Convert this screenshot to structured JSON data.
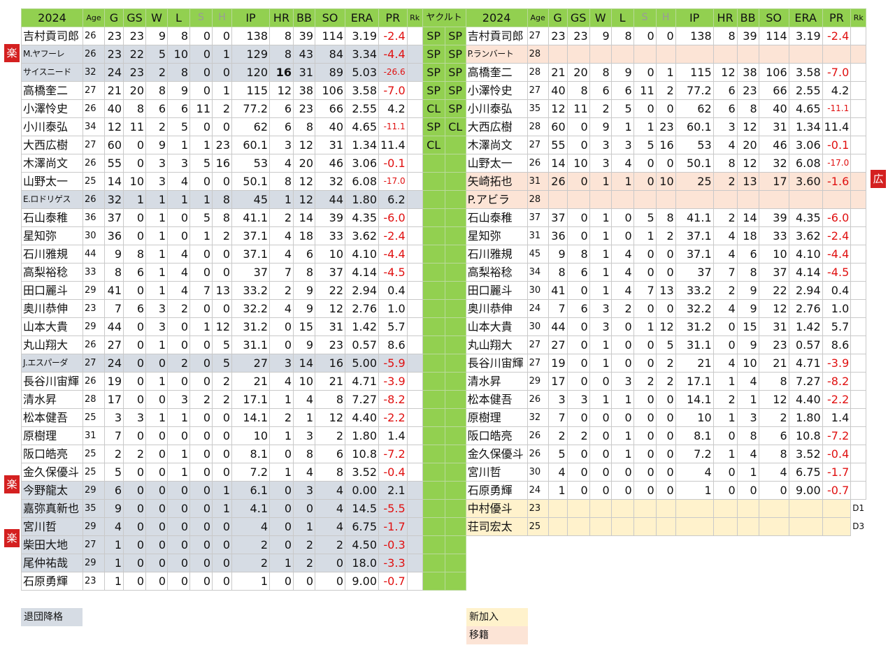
{
  "headers": {
    "left": [
      "2024",
      "Age",
      "G",
      "GS",
      "W",
      "L",
      "S",
      "H",
      "IP",
      "HR",
      "BB",
      "SO",
      "ERA",
      "PR",
      "Rk"
    ],
    "right": [
      "2024",
      "Age",
      "G",
      "GS",
      "W",
      "L",
      "S",
      "H",
      "IP",
      "HR",
      "BB",
      "SO",
      "ERA",
      "PR",
      "Rk"
    ],
    "team": "ヤクルト"
  },
  "left_rows": [
    {
      "name": "吉村貢司郎",
      "age": "26",
      "g": "23",
      "gs": "23",
      "w": "9",
      "l": "8",
      "s": "0",
      "h": "0",
      "ip": "138",
      "hr": "8",
      "bb": "39",
      "so": "114",
      "era": "3.19",
      "pr": "-2.4",
      "rk": "",
      "role1": "SP",
      "role2": "SP"
    },
    {
      "name": "M.ヤフーレ",
      "age": "26",
      "g": "23",
      "gs": "22",
      "w": "5",
      "l": "10",
      "s": "0",
      "h": "1",
      "ip": "129",
      "hr": "8",
      "bb": "43",
      "so": "84",
      "era": "3.34",
      "pr": "-4.4",
      "rk": "",
      "role1": "SP",
      "role2": "SP",
      "badge": "楽"
    },
    {
      "name": "サイスニード",
      "age": "32",
      "g": "24",
      "gs": "23",
      "w": "2",
      "l": "8",
      "s": "0",
      "h": "0",
      "ip": "120",
      "hr": "16",
      "bb": "31",
      "so": "89",
      "era": "5.03",
      "pr": "-26.6",
      "rk": "",
      "role1": "SP",
      "role2": "SP"
    },
    {
      "name": "高橋奎二",
      "age": "27",
      "g": "21",
      "gs": "20",
      "w": "8",
      "l": "9",
      "s": "0",
      "h": "1",
      "ip": "115",
      "hr": "12",
      "bb": "38",
      "so": "106",
      "era": "3.58",
      "pr": "-7.0",
      "rk": "",
      "role1": "SP",
      "role2": "SP"
    },
    {
      "name": "小澤怜史",
      "age": "26",
      "g": "40",
      "gs": "8",
      "w": "6",
      "l": "6",
      "s": "11",
      "h": "2",
      "ip": "77.2",
      "hr": "6",
      "bb": "23",
      "so": "66",
      "era": "2.55",
      "pr": "4.2",
      "rk": "",
      "role1": "CL",
      "role2": "SP"
    },
    {
      "name": "小川泰弘",
      "age": "34",
      "g": "12",
      "gs": "11",
      "w": "2",
      "l": "5",
      "s": "0",
      "h": "0",
      "ip": "62",
      "hr": "6",
      "bb": "8",
      "so": "40",
      "era": "4.65",
      "pr": "-11.1",
      "rk": "",
      "role1": "SP",
      "role2": "CL"
    },
    {
      "name": "大西広樹",
      "age": "27",
      "g": "60",
      "gs": "0",
      "w": "9",
      "l": "1",
      "s": "1",
      "h": "23",
      "ip": "60.1",
      "hr": "3",
      "bb": "12",
      "so": "31",
      "era": "1.34",
      "pr": "11.4",
      "rk": "",
      "role1": "CL",
      "role2": ""
    },
    {
      "name": "木澤尚文",
      "age": "26",
      "g": "55",
      "gs": "0",
      "w": "3",
      "l": "3",
      "s": "5",
      "h": "16",
      "ip": "53",
      "hr": "4",
      "bb": "20",
      "so": "46",
      "era": "3.06",
      "pr": "-0.1",
      "rk": "",
      "role1": "",
      "role2": ""
    },
    {
      "name": "山野太一",
      "age": "25",
      "g": "14",
      "gs": "10",
      "w": "3",
      "l": "4",
      "s": "0",
      "h": "0",
      "ip": "50.1",
      "hr": "8",
      "bb": "12",
      "so": "32",
      "era": "6.08",
      "pr": "-17.0",
      "rk": "",
      "role1": "",
      "role2": ""
    },
    {
      "name": "E.ロドリゲス",
      "age": "26",
      "g": "32",
      "gs": "1",
      "w": "1",
      "l": "1",
      "s": "1",
      "h": "8",
      "ip": "45",
      "hr": "1",
      "bb": "12",
      "so": "44",
      "era": "1.80",
      "pr": "6.2",
      "rk": "",
      "role1": "",
      "role2": ""
    },
    {
      "name": "石山泰稚",
      "age": "36",
      "g": "37",
      "gs": "0",
      "w": "1",
      "l": "0",
      "s": "5",
      "h": "8",
      "ip": "41.1",
      "hr": "2",
      "bb": "14",
      "so": "39",
      "era": "4.35",
      "pr": "-6.0",
      "rk": "",
      "role1": "",
      "role2": ""
    },
    {
      "name": "星知弥",
      "age": "30",
      "g": "36",
      "gs": "0",
      "w": "1",
      "l": "0",
      "s": "1",
      "h": "2",
      "ip": "37.1",
      "hr": "4",
      "bb": "18",
      "so": "33",
      "era": "3.62",
      "pr": "-2.4",
      "rk": "",
      "role1": "",
      "role2": ""
    },
    {
      "name": "石川雅規",
      "age": "44",
      "g": "9",
      "gs": "8",
      "w": "1",
      "l": "4",
      "s": "0",
      "h": "0",
      "ip": "37.1",
      "hr": "4",
      "bb": "6",
      "so": "10",
      "era": "4.10",
      "pr": "-4.4",
      "rk": "",
      "role1": "",
      "role2": ""
    },
    {
      "name": "高梨裕稔",
      "age": "33",
      "g": "8",
      "gs": "6",
      "w": "1",
      "l": "4",
      "s": "0",
      "h": "0",
      "ip": "37",
      "hr": "7",
      "bb": "8",
      "so": "37",
      "era": "4.14",
      "pr": "-4.5",
      "rk": "",
      "role1": "",
      "role2": ""
    },
    {
      "name": "田口麗斗",
      "age": "29",
      "g": "41",
      "gs": "0",
      "w": "1",
      "l": "4",
      "s": "7",
      "h": "13",
      "ip": "33.2",
      "hr": "2",
      "bb": "9",
      "so": "22",
      "era": "2.94",
      "pr": "0.4",
      "rk": "",
      "role1": "",
      "role2": ""
    },
    {
      "name": "奥川恭伸",
      "age": "23",
      "g": "7",
      "gs": "6",
      "w": "3",
      "l": "2",
      "s": "0",
      "h": "0",
      "ip": "32.2",
      "hr": "4",
      "bb": "9",
      "so": "12",
      "era": "2.76",
      "pr": "1.0",
      "rk": "",
      "role1": "",
      "role2": ""
    },
    {
      "name": "山本大貴",
      "age": "29",
      "g": "44",
      "gs": "0",
      "w": "3",
      "l": "0",
      "s": "1",
      "h": "12",
      "ip": "31.2",
      "hr": "0",
      "bb": "15",
      "so": "31",
      "era": "1.42",
      "pr": "5.7",
      "rk": "",
      "role1": "",
      "role2": ""
    },
    {
      "name": "丸山翔大",
      "age": "26",
      "g": "27",
      "gs": "0",
      "w": "1",
      "l": "0",
      "s": "0",
      "h": "5",
      "ip": "31.1",
      "hr": "0",
      "bb": "9",
      "so": "23",
      "era": "0.57",
      "pr": "8.6",
      "rk": "",
      "role1": "",
      "role2": ""
    },
    {
      "name": "J.エスパーダ",
      "age": "27",
      "g": "24",
      "gs": "0",
      "w": "0",
      "l": "2",
      "s": "0",
      "h": "5",
      "ip": "27",
      "hr": "3",
      "bb": "14",
      "so": "16",
      "era": "5.00",
      "pr": "-5.9",
      "rk": "",
      "role1": "",
      "role2": ""
    },
    {
      "name": "長谷川宙輝",
      "age": "26",
      "g": "19",
      "gs": "0",
      "w": "1",
      "l": "0",
      "s": "0",
      "h": "2",
      "ip": "21",
      "hr": "4",
      "bb": "10",
      "so": "21",
      "era": "4.71",
      "pr": "-3.9",
      "rk": "",
      "role1": "",
      "role2": ""
    },
    {
      "name": "清水昇",
      "age": "28",
      "g": "17",
      "gs": "0",
      "w": "0",
      "l": "3",
      "s": "2",
      "h": "2",
      "ip": "17.1",
      "hr": "1",
      "bb": "4",
      "so": "8",
      "era": "7.27",
      "pr": "-8.2",
      "rk": "",
      "role1": "",
      "role2": ""
    },
    {
      "name": "松本健吾",
      "age": "25",
      "g": "3",
      "gs": "3",
      "w": "1",
      "l": "1",
      "s": "0",
      "h": "0",
      "ip": "14.1",
      "hr": "2",
      "bb": "1",
      "so": "12",
      "era": "4.40",
      "pr": "-2.2",
      "rk": "",
      "role1": "",
      "role2": ""
    },
    {
      "name": "原樹理",
      "age": "31",
      "g": "7",
      "gs": "0",
      "w": "0",
      "l": "0",
      "s": "0",
      "h": "0",
      "ip": "10",
      "hr": "1",
      "bb": "3",
      "so": "2",
      "era": "1.80",
      "pr": "1.4",
      "rk": "",
      "role1": "",
      "role2": ""
    },
    {
      "name": "阪口皓亮",
      "age": "25",
      "g": "2",
      "gs": "2",
      "w": "0",
      "l": "1",
      "s": "0",
      "h": "0",
      "ip": "8.1",
      "hr": "0",
      "bb": "8",
      "so": "6",
      "era": "10.8",
      "pr": "-7.2",
      "rk": "",
      "role1": "",
      "role2": ""
    },
    {
      "name": "金久保優斗",
      "age": "25",
      "g": "5",
      "gs": "0",
      "w": "0",
      "l": "1",
      "s": "0",
      "h": "0",
      "ip": "7.2",
      "hr": "1",
      "bb": "4",
      "so": "8",
      "era": "3.52",
      "pr": "-0.4",
      "rk": "",
      "role1": "",
      "role2": ""
    },
    {
      "name": "今野龍太",
      "age": "29",
      "g": "6",
      "gs": "0",
      "w": "0",
      "l": "0",
      "s": "0",
      "h": "1",
      "ip": "6.1",
      "hr": "0",
      "bb": "3",
      "so": "4",
      "era": "0.00",
      "pr": "2.1",
      "rk": "",
      "role1": "",
      "role2": "",
      "badge": "楽"
    },
    {
      "name": "嘉弥真新也",
      "age": "35",
      "g": "9",
      "gs": "0",
      "w": "0",
      "l": "0",
      "s": "0",
      "h": "1",
      "ip": "4.1",
      "hr": "0",
      "bb": "0",
      "so": "4",
      "era": "14.5",
      "pr": "-5.5",
      "rk": "",
      "role1": "",
      "role2": ""
    },
    {
      "name": "宮川哲",
      "age": "29",
      "g": "4",
      "gs": "0",
      "w": "0",
      "l": "0",
      "s": "0",
      "h": "0",
      "ip": "4",
      "hr": "0",
      "bb": "1",
      "so": "4",
      "era": "6.75",
      "pr": "-1.7",
      "rk": "",
      "role1": "",
      "role2": ""
    },
    {
      "name": "柴田大地",
      "age": "27",
      "g": "1",
      "gs": "0",
      "w": "0",
      "l": "0",
      "s": "0",
      "h": "0",
      "ip": "2",
      "hr": "0",
      "bb": "2",
      "so": "2",
      "era": "4.50",
      "pr": "-0.3",
      "rk": "",
      "role1": "",
      "role2": "",
      "badge": "楽"
    },
    {
      "name": "尾仲祐哉",
      "age": "29",
      "g": "1",
      "gs": "0",
      "w": "0",
      "l": "0",
      "s": "0",
      "h": "0",
      "ip": "2",
      "hr": "1",
      "bb": "2",
      "so": "0",
      "era": "18.0",
      "pr": "-3.3",
      "rk": "",
      "role1": "",
      "role2": ""
    },
    {
      "name": "石原勇輝",
      "age": "23",
      "g": "1",
      "gs": "0",
      "w": "0",
      "l": "0",
      "s": "0",
      "h": "0",
      "ip": "1",
      "hr": "0",
      "bb": "0",
      "so": "0",
      "era": "9.00",
      "pr": "-0.7",
      "rk": "",
      "role1": "",
      "role2": ""
    }
  ],
  "right_rows": [
    {
      "name": "吉村貢司郎",
      "age": "27",
      "g": "23",
      "gs": "23",
      "w": "9",
      "l": "8",
      "s": "0",
      "h": "0",
      "ip": "138",
      "hr": "8",
      "bb": "39",
      "so": "114",
      "era": "3.19",
      "pr": "-2.4",
      "rk": ""
    },
    {
      "name": "P.ランバート",
      "age": "28",
      "g": "",
      "gs": "",
      "w": "",
      "l": "",
      "s": "",
      "h": "",
      "ip": "",
      "hr": "",
      "bb": "",
      "so": "",
      "era": "",
      "pr": "",
      "rk": ""
    },
    {
      "name": "高橋奎二",
      "age": "28",
      "g": "21",
      "gs": "20",
      "w": "8",
      "l": "9",
      "s": "0",
      "h": "1",
      "ip": "115",
      "hr": "12",
      "bb": "38",
      "so": "106",
      "era": "3.58",
      "pr": "-7.0",
      "rk": ""
    },
    {
      "name": "小澤怜史",
      "age": "27",
      "g": "40",
      "gs": "8",
      "w": "6",
      "l": "6",
      "s": "11",
      "h": "2",
      "ip": "77.2",
      "hr": "6",
      "bb": "23",
      "so": "66",
      "era": "2.55",
      "pr": "4.2",
      "rk": ""
    },
    {
      "name": "小川泰弘",
      "age": "35",
      "g": "12",
      "gs": "11",
      "w": "2",
      "l": "5",
      "s": "0",
      "h": "0",
      "ip": "62",
      "hr": "6",
      "bb": "8",
      "so": "40",
      "era": "4.65",
      "pr": "-11.1",
      "rk": ""
    },
    {
      "name": "大西広樹",
      "age": "28",
      "g": "60",
      "gs": "0",
      "w": "9",
      "l": "1",
      "s": "1",
      "h": "23",
      "ip": "60.1",
      "hr": "3",
      "bb": "12",
      "so": "31",
      "era": "1.34",
      "pr": "11.4",
      "rk": ""
    },
    {
      "name": "木澤尚文",
      "age": "27",
      "g": "55",
      "gs": "0",
      "w": "3",
      "l": "3",
      "s": "5",
      "h": "16",
      "ip": "53",
      "hr": "4",
      "bb": "20",
      "so": "46",
      "era": "3.06",
      "pr": "-0.1",
      "rk": ""
    },
    {
      "name": "山野太一",
      "age": "26",
      "g": "14",
      "gs": "10",
      "w": "3",
      "l": "4",
      "s": "0",
      "h": "0",
      "ip": "50.1",
      "hr": "8",
      "bb": "12",
      "so": "32",
      "era": "6.08",
      "pr": "-17.0",
      "rk": ""
    },
    {
      "name": "矢崎拓也",
      "age": "31",
      "g": "26",
      "gs": "0",
      "w": "1",
      "l": "1",
      "s": "0",
      "h": "10",
      "ip": "25",
      "hr": "2",
      "bb": "13",
      "so": "17",
      "era": "3.60",
      "pr": "-1.6",
      "rk": "",
      "badge": "広"
    },
    {
      "name": "P.アビラ",
      "age": "28",
      "g": "",
      "gs": "",
      "w": "",
      "l": "",
      "s": "",
      "h": "",
      "ip": "",
      "hr": "",
      "bb": "",
      "so": "",
      "era": "",
      "pr": "",
      "rk": ""
    },
    {
      "name": "石山泰稚",
      "age": "37",
      "g": "37",
      "gs": "0",
      "w": "1",
      "l": "0",
      "s": "5",
      "h": "8",
      "ip": "41.1",
      "hr": "2",
      "bb": "14",
      "so": "39",
      "era": "4.35",
      "pr": "-6.0",
      "rk": ""
    },
    {
      "name": "星知弥",
      "age": "31",
      "g": "36",
      "gs": "0",
      "w": "1",
      "l": "0",
      "s": "1",
      "h": "2",
      "ip": "37.1",
      "hr": "4",
      "bb": "18",
      "so": "33",
      "era": "3.62",
      "pr": "-2.4",
      "rk": ""
    },
    {
      "name": "石川雅規",
      "age": "45",
      "g": "9",
      "gs": "8",
      "w": "1",
      "l": "4",
      "s": "0",
      "h": "0",
      "ip": "37.1",
      "hr": "4",
      "bb": "6",
      "so": "10",
      "era": "4.10",
      "pr": "-4.4",
      "rk": ""
    },
    {
      "name": "高梨裕稔",
      "age": "34",
      "g": "8",
      "gs": "6",
      "w": "1",
      "l": "4",
      "s": "0",
      "h": "0",
      "ip": "37",
      "hr": "7",
      "bb": "8",
      "so": "37",
      "era": "4.14",
      "pr": "-4.5",
      "rk": ""
    },
    {
      "name": "田口麗斗",
      "age": "30",
      "g": "41",
      "gs": "0",
      "w": "1",
      "l": "4",
      "s": "7",
      "h": "13",
      "ip": "33.2",
      "hr": "2",
      "bb": "9",
      "so": "22",
      "era": "2.94",
      "pr": "0.4",
      "rk": ""
    },
    {
      "name": "奥川恭伸",
      "age": "24",
      "g": "7",
      "gs": "6",
      "w": "3",
      "l": "2",
      "s": "0",
      "h": "0",
      "ip": "32.2",
      "hr": "4",
      "bb": "9",
      "so": "12",
      "era": "2.76",
      "pr": "1.0",
      "rk": ""
    },
    {
      "name": "山本大貴",
      "age": "30",
      "g": "44",
      "gs": "0",
      "w": "3",
      "l": "0",
      "s": "1",
      "h": "12",
      "ip": "31.2",
      "hr": "0",
      "bb": "15",
      "so": "31",
      "era": "1.42",
      "pr": "5.7",
      "rk": ""
    },
    {
      "name": "丸山翔大",
      "age": "27",
      "g": "27",
      "gs": "0",
      "w": "1",
      "l": "0",
      "s": "0",
      "h": "5",
      "ip": "31.1",
      "hr": "0",
      "bb": "9",
      "so": "23",
      "era": "0.57",
      "pr": "8.6",
      "rk": ""
    },
    {
      "name": "長谷川宙輝",
      "age": "27",
      "g": "19",
      "gs": "0",
      "w": "1",
      "l": "0",
      "s": "0",
      "h": "2",
      "ip": "21",
      "hr": "4",
      "bb": "10",
      "so": "21",
      "era": "4.71",
      "pr": "-3.9",
      "rk": ""
    },
    {
      "name": "清水昇",
      "age": "29",
      "g": "17",
      "gs": "0",
      "w": "0",
      "l": "3",
      "s": "2",
      "h": "2",
      "ip": "17.1",
      "hr": "1",
      "bb": "4",
      "so": "8",
      "era": "7.27",
      "pr": "-8.2",
      "rk": ""
    },
    {
      "name": "松本健吾",
      "age": "26",
      "g": "3",
      "gs": "3",
      "w": "1",
      "l": "1",
      "s": "0",
      "h": "0",
      "ip": "14.1",
      "hr": "2",
      "bb": "1",
      "so": "12",
      "era": "4.40",
      "pr": "-2.2",
      "rk": ""
    },
    {
      "name": "原樹理",
      "age": "32",
      "g": "7",
      "gs": "0",
      "w": "0",
      "l": "0",
      "s": "0",
      "h": "0",
      "ip": "10",
      "hr": "1",
      "bb": "3",
      "so": "2",
      "era": "1.80",
      "pr": "1.4",
      "rk": ""
    },
    {
      "name": "阪口皓亮",
      "age": "26",
      "g": "2",
      "gs": "2",
      "w": "0",
      "l": "1",
      "s": "0",
      "h": "0",
      "ip": "8.1",
      "hr": "0",
      "bb": "8",
      "so": "6",
      "era": "10.8",
      "pr": "-7.2",
      "rk": ""
    },
    {
      "name": "金久保優斗",
      "age": "26",
      "g": "5",
      "gs": "0",
      "w": "0",
      "l": "1",
      "s": "0",
      "h": "0",
      "ip": "7.2",
      "hr": "1",
      "bb": "4",
      "so": "8",
      "era": "3.52",
      "pr": "-0.4",
      "rk": ""
    },
    {
      "name": "宮川哲",
      "age": "30",
      "g": "4",
      "gs": "0",
      "w": "0",
      "l": "0",
      "s": "0",
      "h": "0",
      "ip": "4",
      "hr": "0",
      "bb": "1",
      "so": "4",
      "era": "6.75",
      "pr": "-1.7",
      "rk": ""
    },
    {
      "name": "石原勇輝",
      "age": "24",
      "g": "1",
      "gs": "0",
      "w": "0",
      "l": "0",
      "s": "0",
      "h": "0",
      "ip": "1",
      "hr": "0",
      "bb": "0",
      "so": "0",
      "era": "9.00",
      "pr": "-0.7",
      "rk": ""
    },
    {
      "name": "中村優斗",
      "age": "23",
      "g": "",
      "gs": "",
      "w": "",
      "l": "",
      "s": "",
      "h": "",
      "ip": "",
      "hr": "",
      "bb": "",
      "so": "",
      "era": "",
      "pr": "",
      "rk": "D1"
    },
    {
      "name": "荘司宏太",
      "age": "25",
      "g": "",
      "gs": "",
      "w": "",
      "l": "",
      "s": "",
      "h": "",
      "ip": "",
      "hr": "",
      "bb": "",
      "so": "",
      "era": "",
      "pr": "",
      "rk": "D3"
    }
  ],
  "legend": {
    "left": "退団降格",
    "new": "新加入",
    "transfer": "移籍"
  },
  "colors": {
    "header_green": "#92d050",
    "departed_gray": "#d6dce4",
    "new_cream": "#fff2cc",
    "transfer_peach": "#fce4d6",
    "negative_red": "#e01010",
    "badge_red": "#d42020"
  }
}
